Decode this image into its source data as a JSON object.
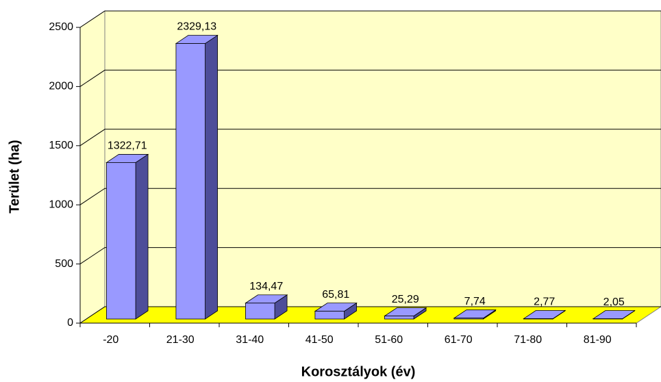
{
  "chart_data": {
    "type": "bar3d",
    "x_label": "Korosztályok (év)",
    "y_label": "Terület (ha)",
    "categories": [
      "-20",
      "21-30",
      "31-40",
      "41-50",
      "51-60",
      "61-70",
      "71-80",
      "81-90"
    ],
    "values": [
      1322.71,
      2329.13,
      134.47,
      65.81,
      25.29,
      7.74,
      2.77,
      2.05
    ],
    "value_labels": [
      "1322,71",
      "2329,13",
      "134,47",
      "65,81",
      "25,29",
      "7,74",
      "2,77",
      "2,05"
    ],
    "color": "#9999ff",
    "ylim": [
      0,
      2500
    ],
    "yticks": [
      0,
      500,
      1000,
      1500,
      2000,
      2500
    ],
    "grid": true
  }
}
